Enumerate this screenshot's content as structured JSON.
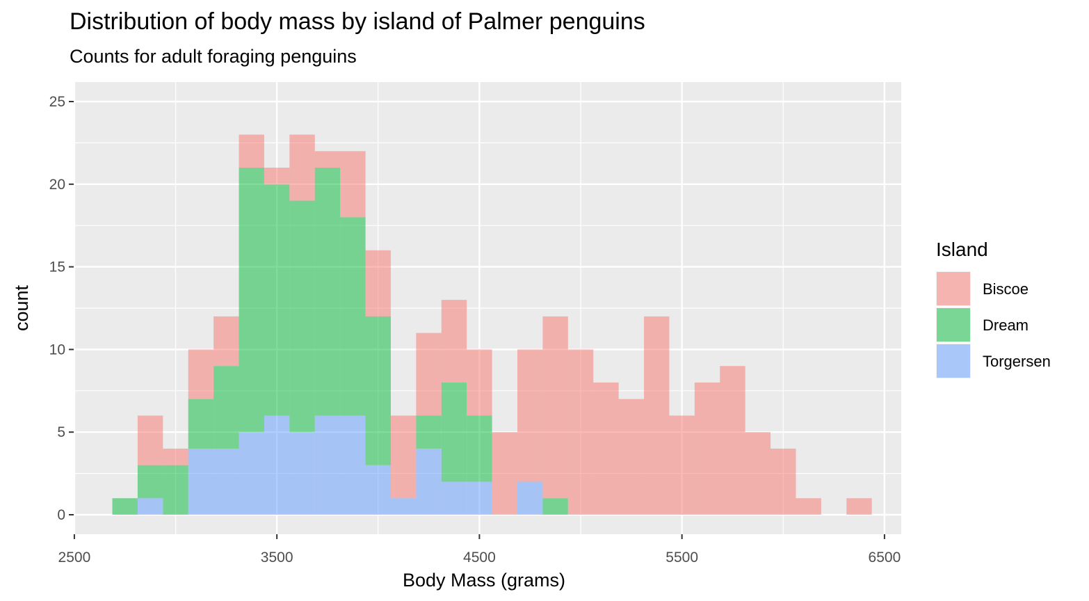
{
  "chart_data": {
    "type": "bar",
    "title": "Distribution of body mass by island of Palmer penguins",
    "subtitle": "Counts for adult foraging penguins",
    "xlabel": "Body Mass (grams)",
    "ylabel": "count",
    "xlim": [
      2500,
      6500
    ],
    "ylim": [
      0,
      25
    ],
    "x_ticks": [
      2500,
      3500,
      4500,
      5500,
      6500
    ],
    "y_ticks": [
      0,
      5,
      10,
      15,
      20,
      25
    ],
    "grid": true,
    "stacked": true,
    "bin_width": 125,
    "bins": [
      2750,
      2875,
      3000,
      3125,
      3250,
      3375,
      3500,
      3625,
      3750,
      3875,
      4000,
      4125,
      4250,
      4375,
      4500,
      4625,
      4750,
      4875,
      5000,
      5125,
      5250,
      5375,
      5500,
      5625,
      5750,
      5875,
      6000,
      6125,
      6250,
      6375
    ],
    "legend": {
      "title": "Island",
      "position": "right"
    },
    "series": [
      {
        "name": "Biscoe",
        "color": "#F8766D",
        "values": [
          0,
          3,
          1,
          3,
          3,
          2,
          1,
          4,
          1,
          4,
          4,
          5,
          5,
          5,
          4,
          5,
          8,
          11,
          10,
          8,
          7,
          12,
          6,
          8,
          9,
          5,
          4,
          1,
          0,
          1
        ]
      },
      {
        "name": "Dream",
        "color": "#00BA38",
        "values": [
          1,
          2,
          3,
          3,
          5,
          16,
          14,
          14,
          15,
          12,
          9,
          0,
          2,
          6,
          4,
          0,
          0,
          1,
          0,
          0,
          0,
          0,
          0,
          0,
          0,
          0,
          0,
          0,
          0,
          0
        ]
      },
      {
        "name": "Torgersen",
        "color": "#619CFF",
        "values": [
          0,
          1,
          0,
          4,
          4,
          5,
          6,
          5,
          6,
          6,
          3,
          1,
          4,
          2,
          2,
          0,
          2,
          0,
          0,
          0,
          0,
          0,
          0,
          0,
          0,
          0,
          0,
          0,
          0,
          0
        ]
      }
    ]
  }
}
